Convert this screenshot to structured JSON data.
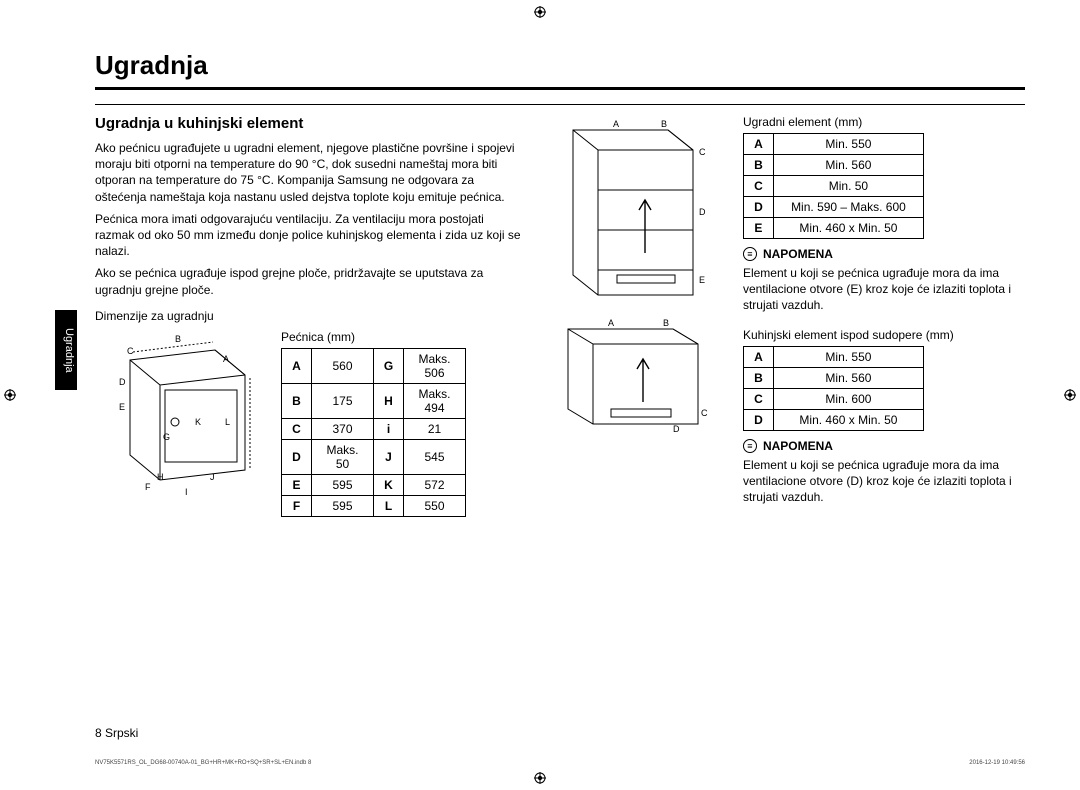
{
  "title": "Ugradnja",
  "sidetab": "Ugradnja",
  "section_heading": "Ugradnja u kuhinjski element",
  "para1": "Ako pećnicu ugrađujete u ugradni element, njegove plastične površine i spojevi moraju biti otporni na temperature do 90 °C, dok susedni nameštaj mora biti otporan na temperature do 75 °C. Kompanija Samsung ne odgovara za oštećenja nameštaja koja nastanu usled dejstva toplote koju emituje pećnica.",
  "para2": "Pećnica mora imati odgovarajuću ventilaciju. Za ventilaciju mora postojati razmak od oko 50 mm između donje police kuhinjskog elementa i zida uz koji se nalazi.",
  "para3": "Ako se pećnica ugrađuje ispod grejne ploče, pridržavajte se uputstava za ugradnju grejne ploče.",
  "dim_heading": "Dimenzije za ugradnju",
  "pecnica_caption": "Pećnica (mm)",
  "pecnica_rows": [
    {
      "l1": "A",
      "v1": "560",
      "l2": "G",
      "v2": "Maks. 506"
    },
    {
      "l1": "B",
      "v1": "175",
      "l2": "H",
      "v2": "Maks. 494"
    },
    {
      "l1": "C",
      "v1": "370",
      "l2": "i",
      "v2": "21"
    },
    {
      "l1": "D",
      "v1": "Maks. 50",
      "l2": "J",
      "v2": "545"
    },
    {
      "l1": "E",
      "v1": "595",
      "l2": "K",
      "v2": "572"
    },
    {
      "l1": "F",
      "v1": "595",
      "l2": "L",
      "v2": "550"
    }
  ],
  "ugradni_caption": "Ugradni element (mm)",
  "ugradni_rows": [
    {
      "l": "A",
      "v": "Min. 550"
    },
    {
      "l": "B",
      "v": "Min. 560"
    },
    {
      "l": "C",
      "v": "Min. 50"
    },
    {
      "l": "D",
      "v": "Min. 590 – Maks. 600"
    },
    {
      "l": "E",
      "v": "Min. 460 x Min. 50"
    }
  ],
  "note_label": "NAPOMENA",
  "note1": "Element u koji se pećnica ugrađuje mora da ima ventilacione otvore (E) kroz koje će izlaziti toplota i strujati vazduh.",
  "sudopere_caption": "Kuhinjski element ispod sudopere (mm)",
  "sudopere_rows": [
    {
      "l": "A",
      "v": "Min. 550"
    },
    {
      "l": "B",
      "v": "Min. 560"
    },
    {
      "l": "C",
      "v": "Min. 600"
    },
    {
      "l": "D",
      "v": "Min. 460 x Min. 50"
    }
  ],
  "note2": "Element u koji se pećnica ugrađuje mora da ima ventilacione otvore (D) kroz koje će izlaziti toplota i strujati vazduh.",
  "pagenum": "8  Srpski",
  "footerfile": "NV75K5571RS_OL_DG68-00740A-01_BG+HR+MK+RO+SQ+SR+SL+EN.indb   8",
  "footerdate": "2016-12-19   10:49:56",
  "oven_letters": [
    "A",
    "B",
    "C",
    "D",
    "E",
    "F",
    "G",
    "H",
    "I",
    "J",
    "K",
    "L"
  ],
  "cabinet_letters": [
    "A",
    "B",
    "C",
    "D",
    "E"
  ],
  "under_letters": [
    "A",
    "B",
    "C",
    "D"
  ]
}
